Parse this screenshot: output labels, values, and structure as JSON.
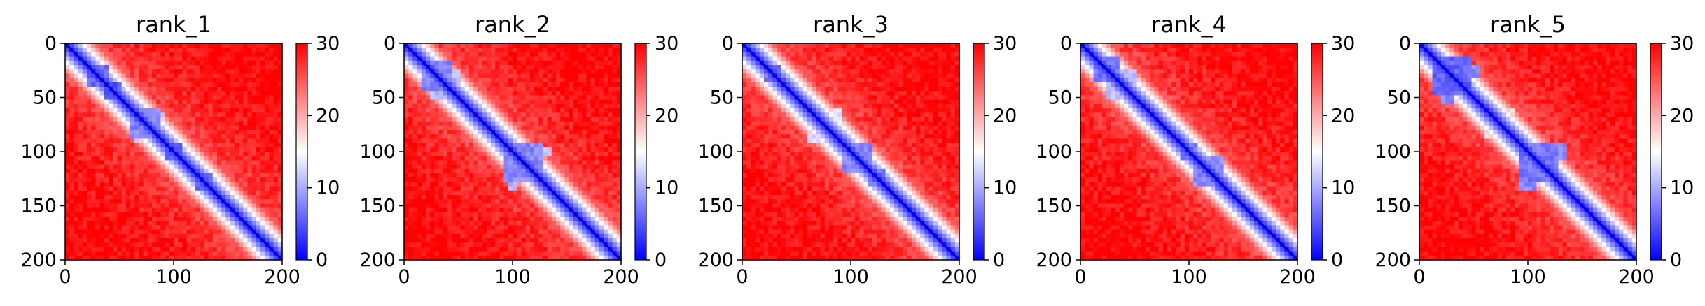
{
  "chart_data": {
    "type": "heatmap",
    "colormap": {
      "name": "bwr",
      "low": "#0000ff",
      "mid": "#ffffff",
      "high": "#ff0000"
    },
    "x_ticks": [
      0,
      100,
      200
    ],
    "y_ticks": [
      0,
      50,
      100,
      150,
      200
    ],
    "xlim": [
      0,
      200
    ],
    "ylim": [
      200,
      0
    ],
    "colorbar": {
      "range": [
        0,
        30
      ],
      "ticks": [
        0,
        10,
        20,
        30
      ]
    },
    "panels": [
      {
        "title": "rank_1",
        "blocks": [
          {
            "x": 30,
            "y": 30,
            "r": 10,
            "v": 6
          },
          {
            "x": 45,
            "y": 45,
            "r": 8,
            "v": 5
          },
          {
            "x": 75,
            "y": 75,
            "r": 14,
            "v": 8
          },
          {
            "x": 100,
            "y": 100,
            "r": 10,
            "v": 6
          },
          {
            "x": 128,
            "y": 128,
            "r": 9,
            "v": 6
          },
          {
            "x": 88,
            "y": 66,
            "r": 4,
            "v": 12
          },
          {
            "x": 66,
            "y": 88,
            "r": 4,
            "v": 12
          }
        ]
      },
      {
        "title": "rank_2",
        "blocks": [
          {
            "x": 30,
            "y": 30,
            "r": 16,
            "v": 8
          },
          {
            "x": 30,
            "y": 47,
            "r": 6,
            "v": 11
          },
          {
            "x": 47,
            "y": 30,
            "r": 6,
            "v": 11
          },
          {
            "x": 110,
            "y": 110,
            "r": 18,
            "v": 8
          },
          {
            "x": 100,
            "y": 130,
            "r": 6,
            "v": 11
          },
          {
            "x": 130,
            "y": 100,
            "r": 6,
            "v": 11
          },
          {
            "x": 60,
            "y": 60,
            "r": 5,
            "v": 14
          }
        ]
      },
      {
        "title": "rank_3",
        "blocks": [
          {
            "x": 28,
            "y": 28,
            "r": 10,
            "v": 7
          },
          {
            "x": 45,
            "y": 45,
            "r": 7,
            "v": 8
          },
          {
            "x": 88,
            "y": 66,
            "r": 5,
            "v": 13
          },
          {
            "x": 66,
            "y": 88,
            "r": 5,
            "v": 13
          },
          {
            "x": 105,
            "y": 105,
            "r": 14,
            "v": 8
          },
          {
            "x": 125,
            "y": 125,
            "r": 8,
            "v": 7
          }
        ]
      },
      {
        "title": "rank_4",
        "blocks": [
          {
            "x": 25,
            "y": 25,
            "r": 12,
            "v": 7
          },
          {
            "x": 30,
            "y": 46,
            "r": 6,
            "v": 11
          },
          {
            "x": 46,
            "y": 30,
            "r": 6,
            "v": 11
          },
          {
            "x": 100,
            "y": 100,
            "r": 10,
            "v": 7
          },
          {
            "x": 112,
            "y": 125,
            "r": 8,
            "v": 8
          },
          {
            "x": 125,
            "y": 112,
            "r": 8,
            "v": 8
          },
          {
            "x": 130,
            "y": 130,
            "r": 7,
            "v": 7
          }
        ]
      },
      {
        "title": "rank_5",
        "blocks": [
          {
            "x": 30,
            "y": 30,
            "r": 20,
            "v": 6
          },
          {
            "x": 25,
            "y": 48,
            "r": 7,
            "v": 8
          },
          {
            "x": 48,
            "y": 25,
            "r": 7,
            "v": 8
          },
          {
            "x": 110,
            "y": 110,
            "r": 18,
            "v": 7
          },
          {
            "x": 100,
            "y": 128,
            "r": 8,
            "v": 8
          },
          {
            "x": 128,
            "y": 100,
            "r": 8,
            "v": 8
          },
          {
            "x": 85,
            "y": 62,
            "r": 3,
            "v": 14
          },
          {
            "x": 62,
            "y": 85,
            "r": 3,
            "v": 14
          }
        ]
      }
    ]
  }
}
